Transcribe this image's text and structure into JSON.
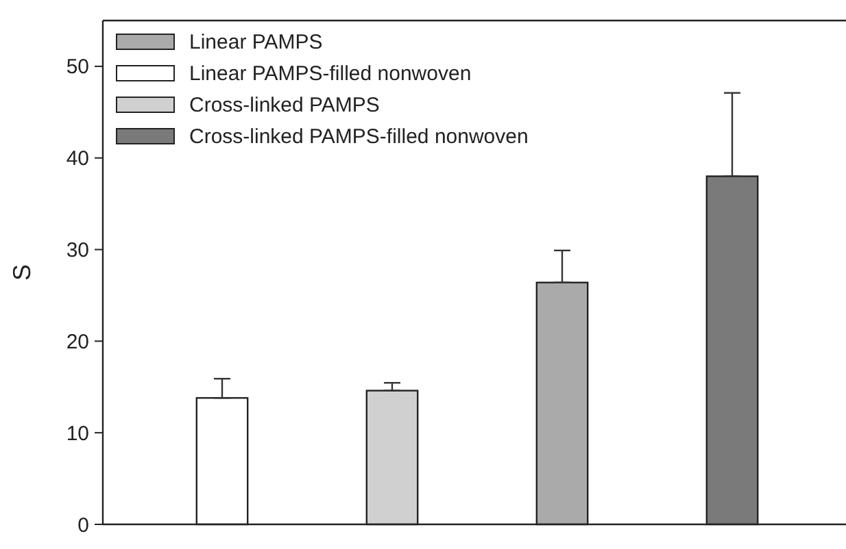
{
  "chart_data": {
    "type": "bar",
    "ylabel": "S",
    "categories": [
      null,
      null,
      null,
      null
    ],
    "series": [
      {
        "name": "Linear PAMPS",
        "color": "#aaaaaa",
        "values": [
          null,
          null,
          26.4,
          null
        ],
        "errors": [
          null,
          null,
          [
            26.4,
            29.9
          ],
          null
        ]
      },
      {
        "name": "Linear PAMPS-filled nonwoven",
        "color": "#ffffff",
        "values": [
          13.8,
          null,
          null,
          null
        ],
        "errors": [
          [
            13.8,
            15.9
          ],
          null,
          null,
          null
        ]
      },
      {
        "name": "Cross-linked PAMPS",
        "color": "#d0d0d0",
        "values": [
          null,
          14.6,
          null,
          null
        ],
        "errors": [
          null,
          [
            14.6,
            15.45
          ],
          null,
          null
        ]
      },
      {
        "name": "Cross-linked PAMPS-filled nonwoven",
        "color": "#7a7a7a",
        "values": [
          null,
          null,
          null,
          38.0
        ],
        "errors": [
          null,
          null,
          null,
          [
            38.0,
            47.1
          ]
        ]
      }
    ],
    "ylim": [
      0,
      55
    ],
    "yticks": [
      0,
      10,
      20,
      30,
      40,
      50
    ],
    "legend": "top left",
    "grid": false
  }
}
